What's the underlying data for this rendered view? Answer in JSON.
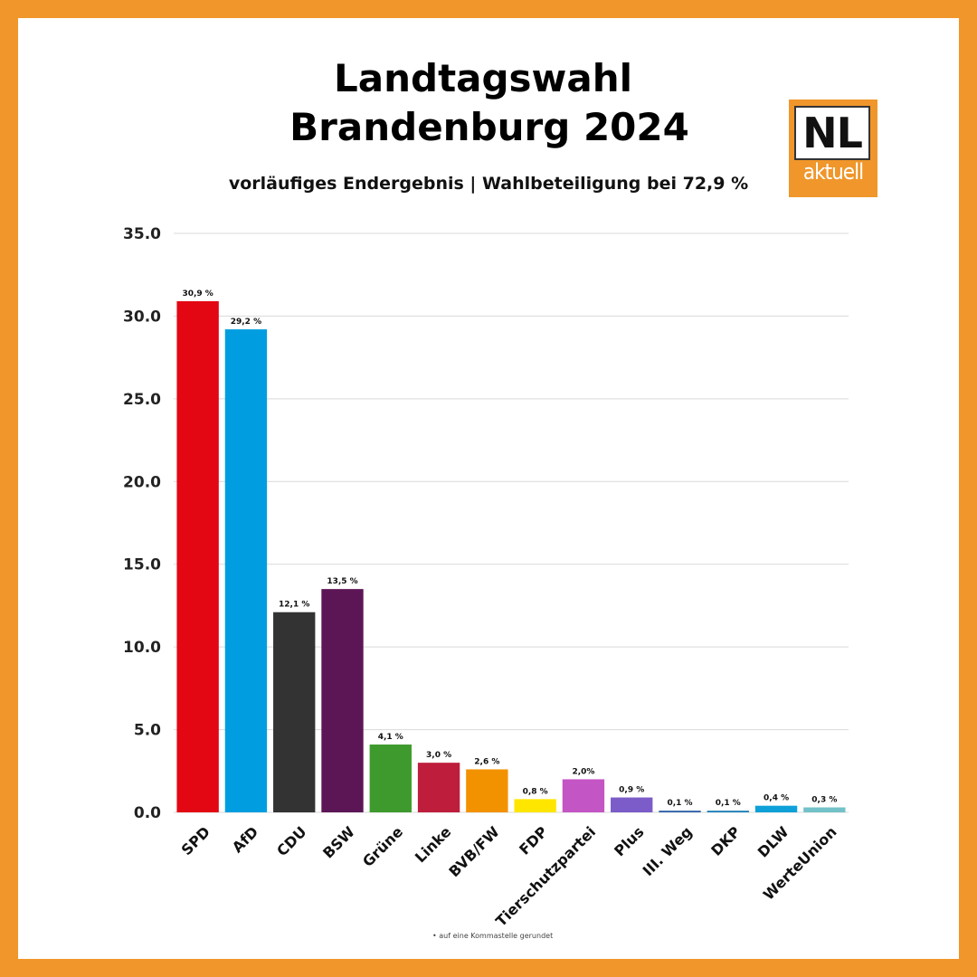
{
  "title_line1": "Landtagswahl",
  "title_line2": "Brandenburg 2024",
  "subtitle": "vorläufiges Endergebnis | Wahlbeteiligung bei 72,9 %",
  "logo": {
    "top": "NL",
    "bottom": "aktuell"
  },
  "footnote": "auf eine Kommastelle gerundet",
  "colors": {
    "frame": "#f0962a",
    "background": "#ffffff"
  },
  "chart_data": {
    "type": "bar",
    "title": "Landtagswahl Brandenburg 2024",
    "ylim": [
      0,
      35
    ],
    "yticks": [
      "0.0",
      "5.0",
      "10.0",
      "15.0",
      "20.0",
      "25.0",
      "30.0",
      "35.0"
    ],
    "grid": true,
    "categories": [
      "SPD",
      "AfD",
      "CDU",
      "BSW",
      "Grüne",
      "Linke",
      "BVB/FW",
      "FDP",
      "Tierschutzpartei",
      "Plus",
      "III. Weg",
      "DKP",
      "DLW",
      "WerteUnion"
    ],
    "values": [
      30.9,
      29.2,
      12.1,
      13.5,
      4.1,
      3.0,
      2.6,
      0.8,
      2.0,
      0.9,
      0.1,
      0.1,
      0.4,
      0.3
    ],
    "value_labels": [
      "30,9 %",
      "29,2 %",
      "12,1 %",
      "13,5 %",
      "4,1 %",
      "3,0 %",
      "2,6 %",
      "0,8 %",
      "2,0%",
      "0,9 %",
      "0,1 %",
      "0,1 %",
      "0,4 %",
      "0,3 %"
    ],
    "colors": [
      "#e30613",
      "#009ee0",
      "#333333",
      "#5c1656",
      "#3f9a2e",
      "#be1e3c",
      "#f39200",
      "#ffe600",
      "#c455c4",
      "#7b5cc8",
      "#2b5fa8",
      "#1c7fb8",
      "#0ea0d8",
      "#73c2c8"
    ]
  }
}
